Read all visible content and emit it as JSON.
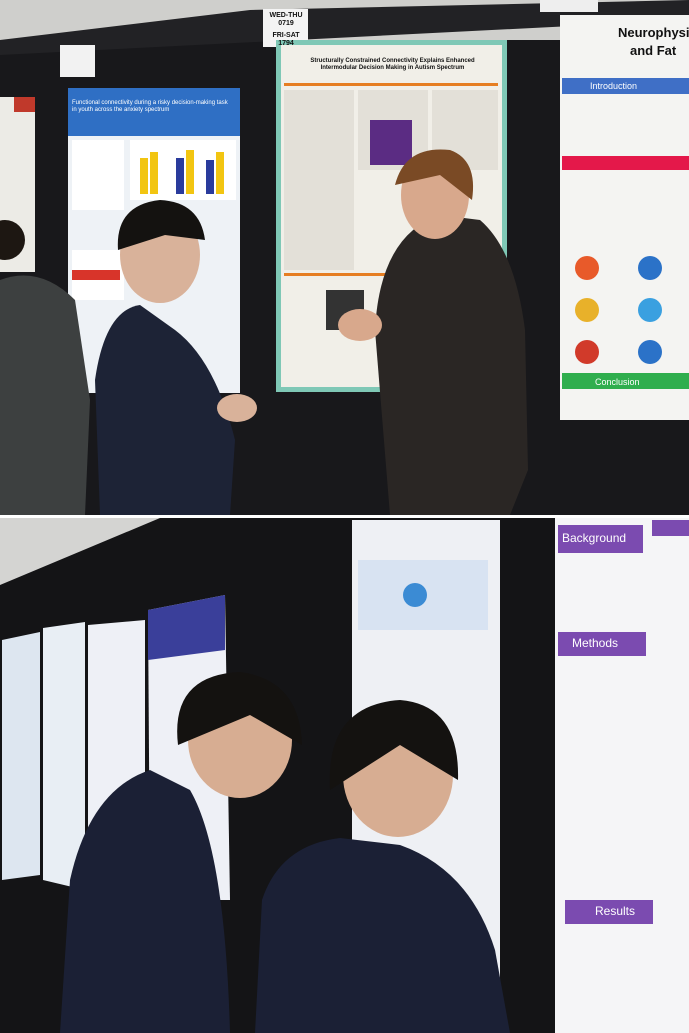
{
  "top_photo": {
    "sign": {
      "line1": "WED-THU 0719",
      "line2": "FRI-SAT 1794"
    },
    "poster_left": {
      "title": "Functional connectivity during a risky decision-making task in youth across the anxiety spectrum"
    },
    "poster_center": {
      "title": "Structurally Constrained Connectivity Explains Enhanced Intermodular Decision Making in Autism Spectrum"
    },
    "poster_right": {
      "title_line1": "Neurophysi",
      "title_line2": "and Fat",
      "sections": [
        "Introduction",
        "Conclusion"
      ]
    }
  },
  "bottom_photo": {
    "poster_right": {
      "sections": [
        "Background",
        "Methods",
        "Results"
      ]
    }
  }
}
